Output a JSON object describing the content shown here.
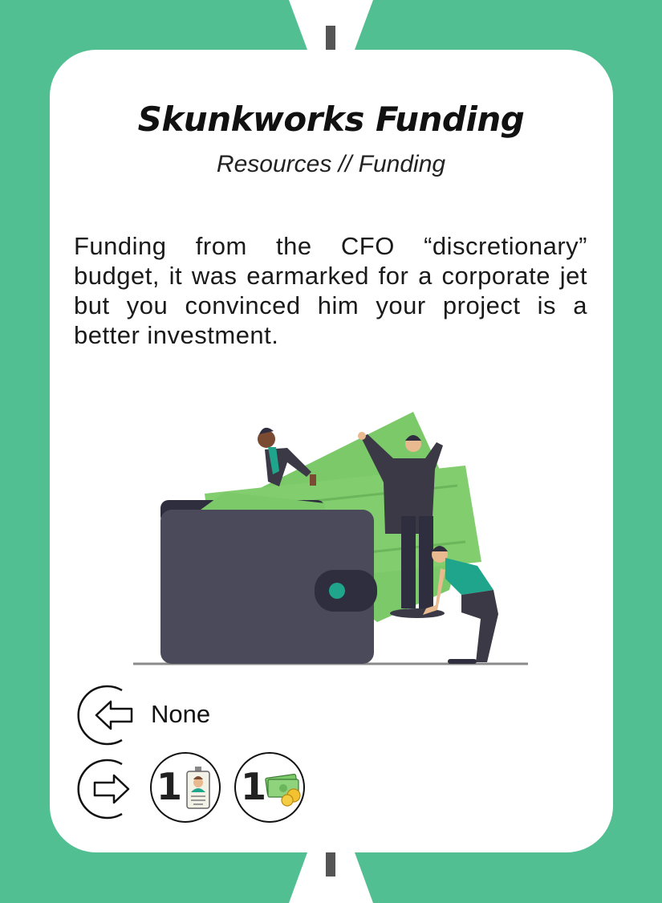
{
  "card": {
    "title": "Skunkworks Funding",
    "subtitle": "Resources // Funding",
    "flavor": "Funding from the CFO “discretionary” budget, it was earmarked for a corporate jet but you convinced him your project is a better investment."
  },
  "input": {
    "icon": "arrow-in-icon",
    "label": "None"
  },
  "output": {
    "icon": "arrow-out-icon",
    "items": [
      {
        "count": "1",
        "icon": "id-badge-icon"
      },
      {
        "count": "1",
        "icon": "money-coins-icon"
      }
    ]
  },
  "colors": {
    "background": "#51bf91",
    "card": "#ffffff",
    "money": "#7cc96a",
    "wallet": "#4b4a5a",
    "accent": "#1fa58c"
  }
}
